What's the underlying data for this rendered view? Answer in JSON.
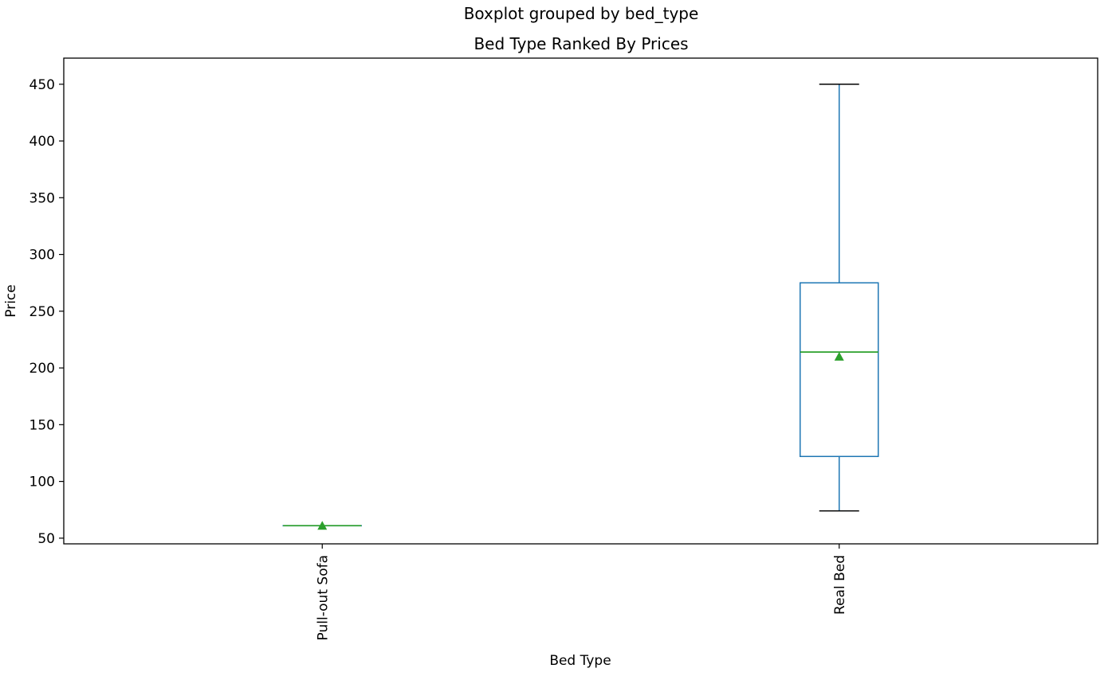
{
  "chart_data": {
    "type": "boxplot",
    "suptitle": "Boxplot grouped by bed_type",
    "title": "Bed Type Ranked By Prices",
    "xlabel": "Bed Type",
    "ylabel": "Price",
    "ylim": [
      45,
      473
    ],
    "yticks": [
      50,
      100,
      150,
      200,
      250,
      300,
      350,
      400,
      450
    ],
    "grid": false,
    "categories": [
      "Pull-out Sofa",
      "Real Bed"
    ],
    "boxes": [
      {
        "category": "Pull-out Sofa",
        "whislo": 61,
        "q1": 61,
        "med": 61,
        "q3": 61,
        "whishi": 61,
        "mean": 61
      },
      {
        "category": "Real Bed",
        "whislo": 74,
        "q1": 122,
        "med": 214,
        "q3": 275,
        "whishi": 450,
        "mean": 210
      }
    ],
    "colors": {
      "box": "#1f77b4",
      "median": "#2ca02c",
      "mean_marker": "#2ca02c",
      "caps": "#000000",
      "axes": "#000000"
    }
  }
}
